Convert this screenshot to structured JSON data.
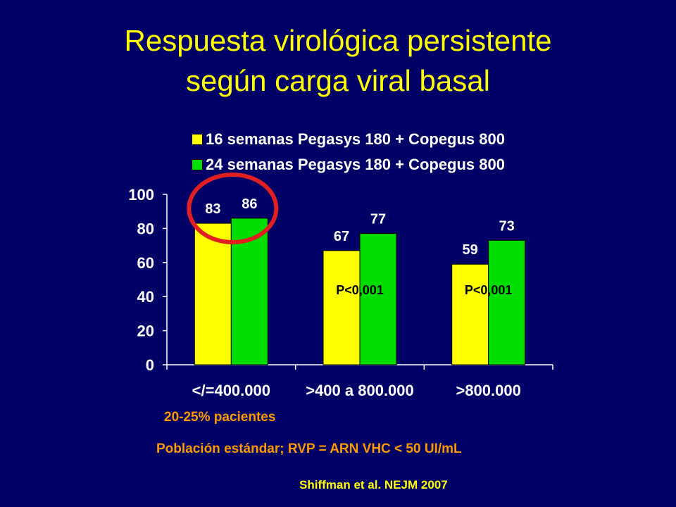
{
  "title": {
    "line1": "Respuesta virológica persistente",
    "line2": "según carga viral basal"
  },
  "colors": {
    "background": "#000066",
    "title": "#FFFF00",
    "series_16": "#FFFF00",
    "series_24": "#00DD00",
    "highlight_circle": "#E02020",
    "note": "#FF9900"
  },
  "chart_data": {
    "type": "bar",
    "categories": [
      "</=400.000",
      ">400 a 800.000",
      ">800.000"
    ],
    "series": [
      {
        "name": "16 semanas Pegasys 180 + Copegus 800",
        "values": [
          83,
          67,
          59
        ]
      },
      {
        "name": "24 semanas Pegasys 180 + Copegus 800",
        "values": [
          86,
          77,
          73
        ]
      }
    ],
    "ylim": [
      0,
      100
    ],
    "yticks": [
      "0",
      "20",
      "40",
      "60",
      "80",
      "100"
    ],
    "legend_position": "top",
    "grid": false,
    "annotations": [
      "",
      "P<0,001",
      "P<0,001"
    ],
    "highlight": "circle around first category group"
  },
  "notes": {
    "patients": "20-25% pacientes",
    "population": "Población estándar; RVP = ARN VHC < 50 UI/mL",
    "source": "Shiffman et al. NEJM 2007"
  }
}
